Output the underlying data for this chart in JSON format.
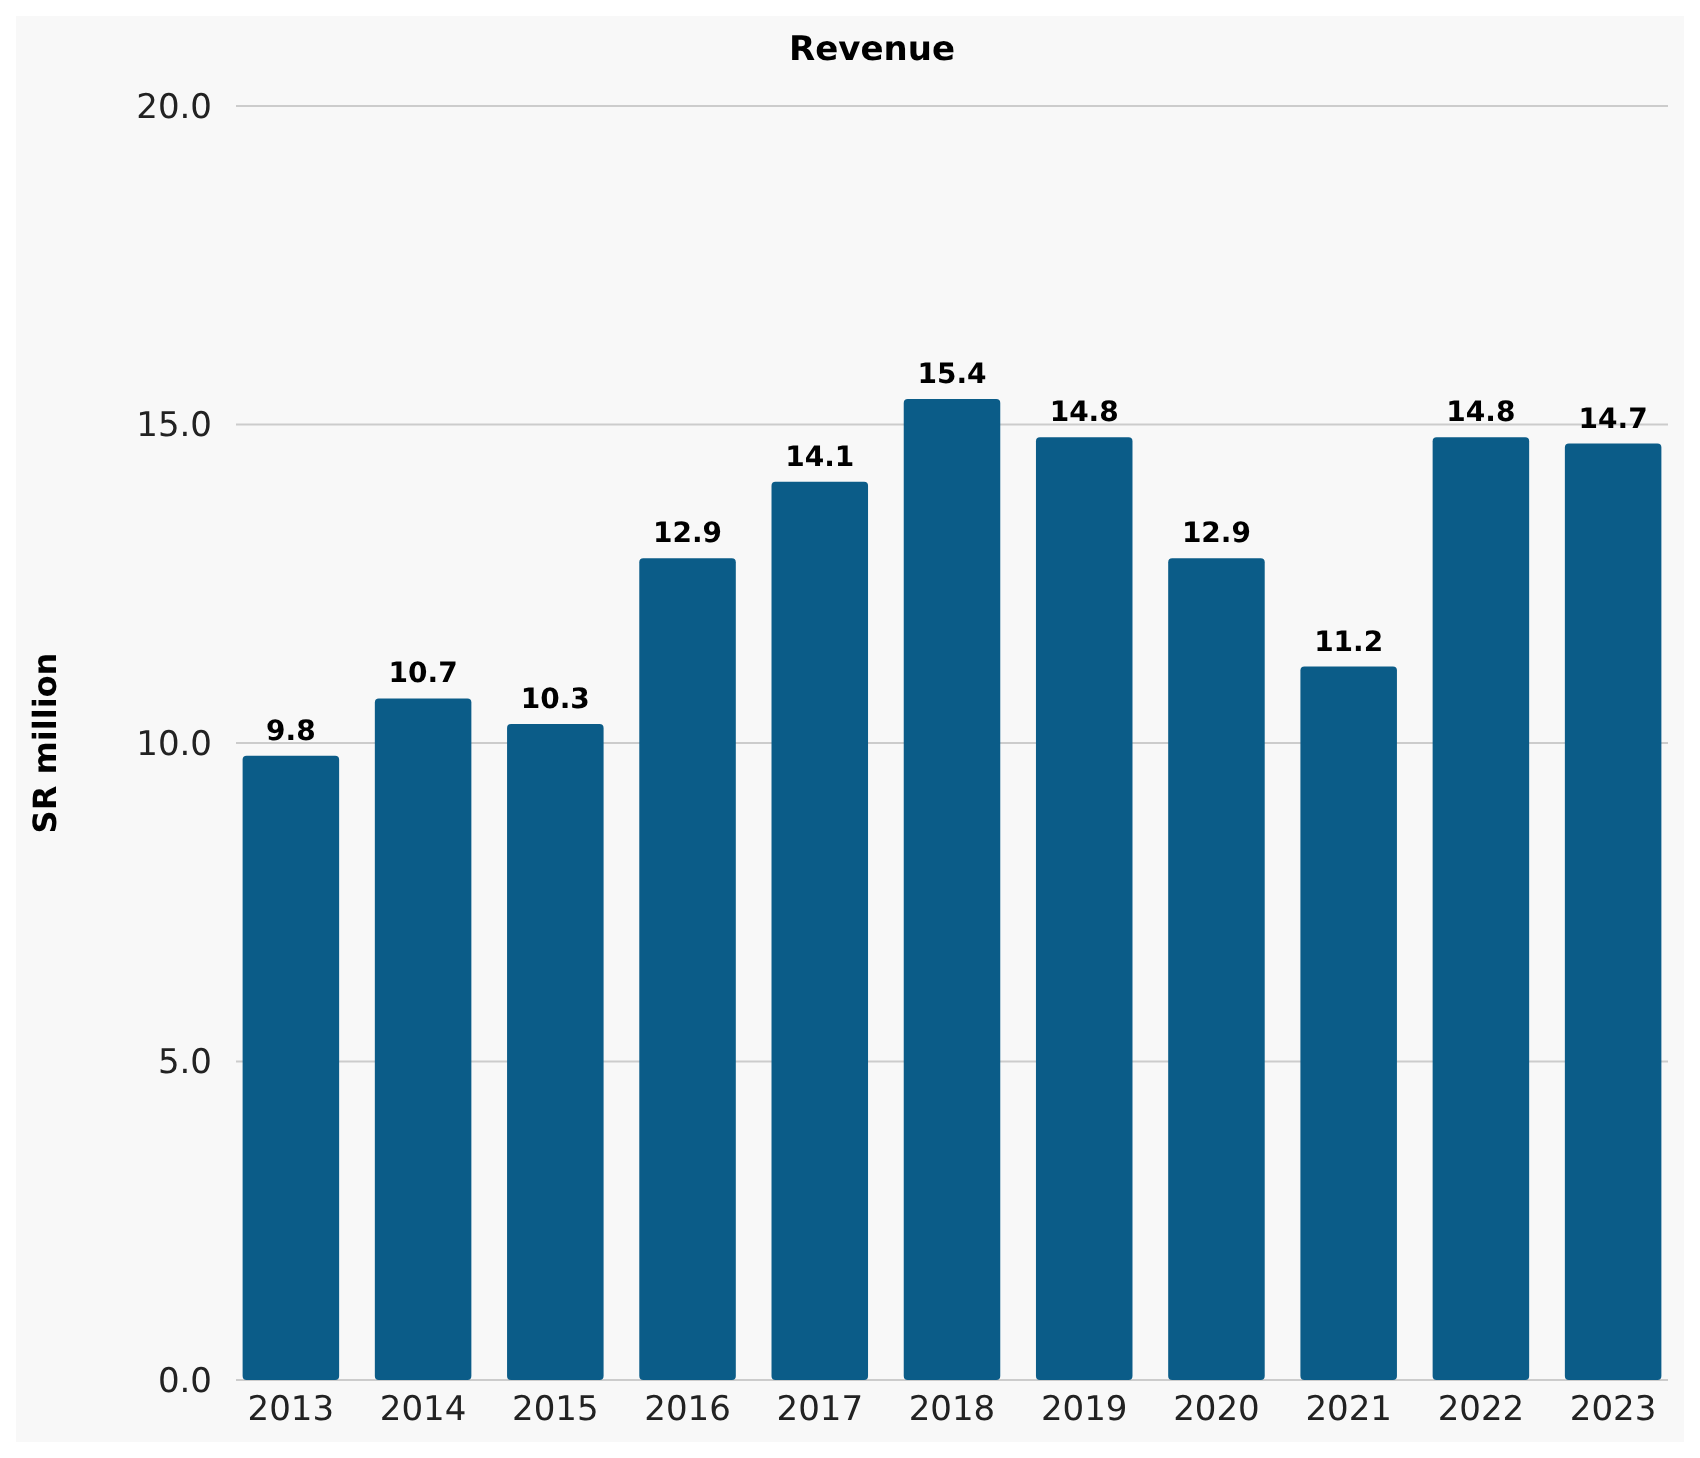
{
  "chart_data": {
    "type": "bar",
    "title": "Revenue",
    "ylabel": "SR million",
    "categories": [
      "2013",
      "2014",
      "2015",
      "2016",
      "2017",
      "2018",
      "2019",
      "2020",
      "2021",
      "2022",
      "2023"
    ],
    "values": [
      9.8,
      10.7,
      10.3,
      12.9,
      14.1,
      15.4,
      14.8,
      12.9,
      11.2,
      14.8,
      14.7
    ],
    "color": "#0b5c88",
    "ylim": [
      0,
      20
    ],
    "yticks": [
      {
        "value": 0,
        "label": "0.0"
      },
      {
        "value": 5,
        "label": "5.0"
      },
      {
        "value": 10,
        "label": "10.0"
      },
      {
        "value": 15,
        "label": "15.0"
      },
      {
        "value": 20,
        "label": "20.0"
      }
    ],
    "grid": "y",
    "data_labels": true
  }
}
